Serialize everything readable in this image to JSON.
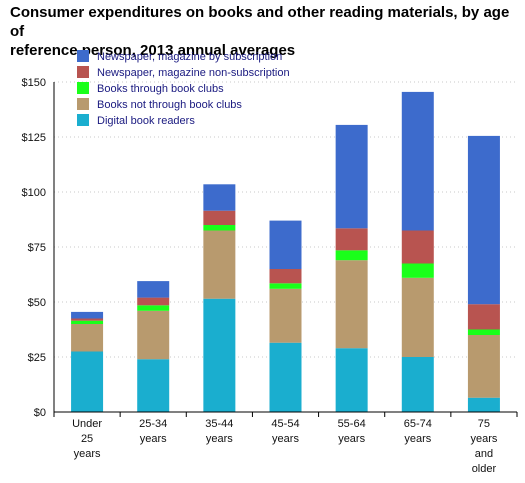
{
  "chart_data": {
    "type": "bar",
    "stacked": true,
    "title_lines": [
      "Consumer expenditures on books and other reading materials, by age of",
      "reference person, 2013 annual averages"
    ],
    "xlabel": "",
    "ylabel": "",
    "ylim": [
      0,
      150
    ],
    "yticks": [
      "$0",
      "$25",
      "$50",
      "$75",
      "$100",
      "$125",
      "$150"
    ],
    "ytick_values": [
      0,
      25,
      50,
      75,
      100,
      125,
      150
    ],
    "grid": true,
    "legend_placement": "top-left",
    "categories": [
      [
        "Under",
        "25",
        "years"
      ],
      [
        "25-34",
        "years"
      ],
      [
        "35-44",
        "years"
      ],
      [
        "45-54",
        "years"
      ],
      [
        "55-64",
        "years"
      ],
      [
        "65-74",
        "years"
      ],
      [
        "75",
        "years",
        "and",
        "older"
      ]
    ],
    "series": [
      {
        "name": "Digital book readers",
        "color": "#1aaecf",
        "values": [
          27.5,
          24,
          51.5,
          31.5,
          29,
          25,
          6.5
        ]
      },
      {
        "name": "Books not through book clubs",
        "color": "#b89a6e",
        "values": [
          12.5,
          22,
          31,
          24.5,
          40,
          36,
          28.5
        ]
      },
      {
        "name": "Books through book clubs",
        "color": "#1aff1a",
        "values": [
          1.5,
          2.5,
          2.5,
          2.5,
          4.5,
          6.5,
          2.5
        ]
      },
      {
        "name": "Newspaper, magazine non-subscription",
        "color": "#b85450",
        "values": [
          1,
          3.5,
          6.5,
          6.5,
          10,
          15,
          11.5
        ]
      },
      {
        "name": "Newspaper, magazine by subscription",
        "color": "#3d6bcc",
        "values": [
          3,
          7.5,
          12,
          22,
          47,
          63,
          76.5
        ]
      }
    ],
    "legend_order": [
      4,
      3,
      2,
      1,
      0
    ]
  }
}
